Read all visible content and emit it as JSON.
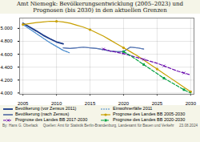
{
  "chart_data": {
    "type": "line",
    "title": "Amt Niemegk: Bevölkerungsentwicklung (2005–2023) und\nPrognosen (bis 2030) in den aktuellen Grenzen",
    "annotations": [
      "By: Hans G. Oberlack",
      "Quellen: Amt für Statistik Berlin-Brandenburg, Landesamt für Bauen und Verkehr     23.08.2024"
    ],
    "xlim": [
      2004.5,
      2030.5
    ],
    "ylim": [
      3980,
      5160
    ],
    "xticks": [
      2005,
      2010,
      2015,
      2020,
      2025,
      2030
    ],
    "yticks": [
      {
        "value": 4000,
        "label": "4.000"
      },
      {
        "value": 4200,
        "label": "4.200"
      },
      {
        "value": 4400,
        "label": "4.400"
      },
      {
        "value": 4600,
        "label": "4.600"
      },
      {
        "value": 4800,
        "label": "4.800"
      },
      {
        "value": 5000,
        "label": "5.000"
      }
    ],
    "grid": true,
    "legend": "bottom",
    "series": [
      {
        "name": "Bevölkerung (vor Zensus 2011)",
        "color": "#1a3a8a",
        "line_style": "solid",
        "marker": "none",
        "x": [
          2005,
          2006,
          2007,
          2008,
          2009,
          2010,
          2011
        ],
        "values": [
          5080,
          5020,
          4960,
          4895,
          4840,
          4790,
          4760
        ]
      },
      {
        "name": "Einwohnerfälle 2011",
        "color": "#4488cc",
        "line_style": "dotted",
        "marker": "none",
        "x": [
          2005,
          2006,
          2007,
          2008,
          2009,
          2010,
          2011,
          2012
        ],
        "values": [
          5060,
          4990,
          4920,
          4850,
          4780,
          4720,
          4660,
          4620
        ]
      },
      {
        "name": "Bevölkerung (nach Zensus)",
        "color": "#1a3a8a",
        "line_style": "solid",
        "marker": "none",
        "x": [
          2011,
          2012,
          2013,
          2014,
          2015,
          2016,
          2017,
          2018,
          2019,
          2020,
          2021,
          2022,
          2023
        ],
        "values": [
          4700,
          4690,
          4700,
          4710,
          4700,
          4690,
          4670,
          4650,
          4640,
          4640,
          4710,
          4700,
          4680
        ]
      },
      {
        "name": "Prognose des Landes BB 2005-2030",
        "color": "#c8a000",
        "line_style": "solid",
        "marker": "circle",
        "x": [
          2005,
          2006,
          2007,
          2008,
          2009,
          2010,
          2011,
          2012,
          2013,
          2014,
          2015,
          2016,
          2017,
          2018,
          2019,
          2020,
          2021,
          2022,
          2023,
          2024,
          2025,
          2026,
          2027,
          2028,
          2029,
          2030
        ],
        "values": [
          5060,
          5075,
          5090,
          5100,
          5110,
          5110,
          5100,
          5080,
          5050,
          5020,
          4980,
          4930,
          4880,
          4820,
          4760,
          4700,
          4640,
          4580,
          4510,
          4440,
          4370,
          4300,
          4230,
          4160,
          4090,
          4020
        ]
      },
      {
        "name": "Prognose des Landes BB 2017-2030",
        "color": "#6a0dad",
        "line_style": "dashed",
        "marker": "x",
        "x": [
          2017,
          2018,
          2019,
          2020,
          2021,
          2022,
          2023,
          2024,
          2025,
          2026,
          2027,
          2028,
          2029,
          2030
        ],
        "values": [
          4680,
          4650,
          4630,
          4610,
          4580,
          4550,
          4520,
          4490,
          4460,
          4420,
          4380,
          4340,
          4310,
          4280
        ]
      },
      {
        "name": "Prognose des Landes BB 2020-2030",
        "color": "#00a040",
        "line_style": "dashed",
        "marker": "square",
        "x": [
          2020,
          2021,
          2022,
          2023,
          2024,
          2025,
          2026,
          2027,
          2028,
          2029,
          2030
        ],
        "values": [
          4640,
          4580,
          4510,
          4440,
          4370,
          4300,
          4230,
          4170,
          4110,
          4050,
          4000
        ]
      }
    ]
  }
}
